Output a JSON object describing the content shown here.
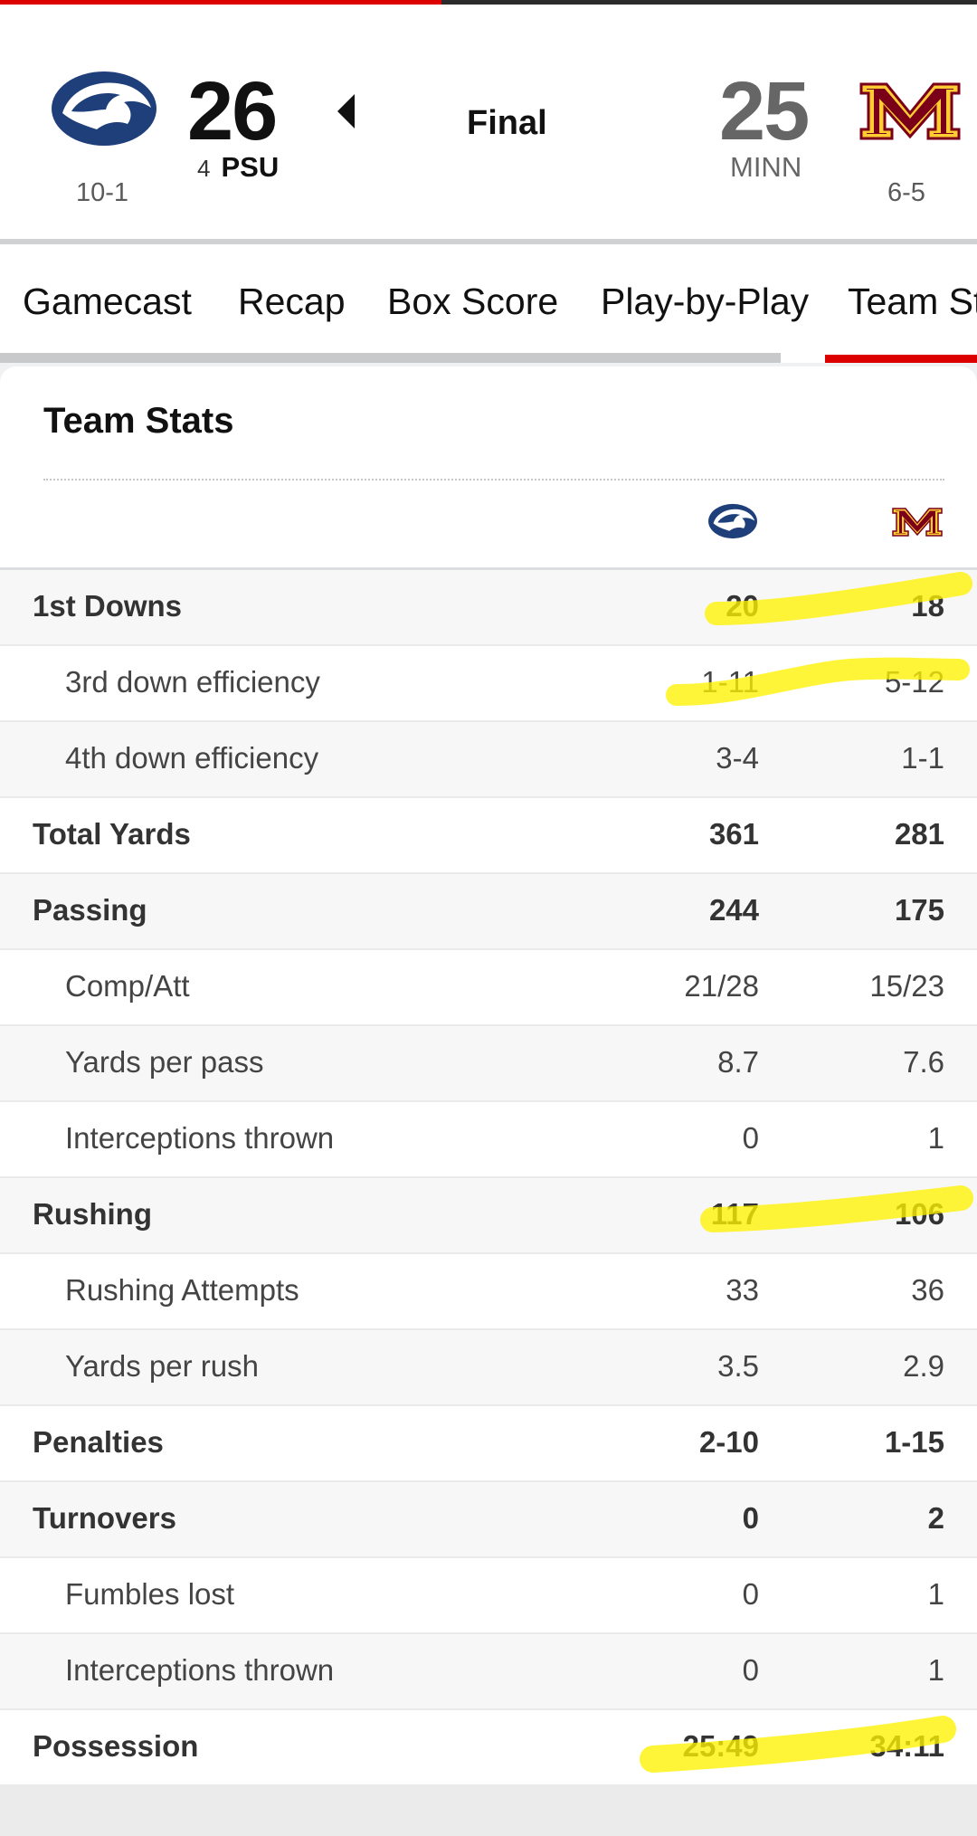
{
  "scoreboard": {
    "home": {
      "abbr": "PSU",
      "rank": "4",
      "score": "26",
      "record": "10-1",
      "logo": "penn-state-nittany-lion",
      "color": "#1e3f7a"
    },
    "away": {
      "abbr": "MINN",
      "score": "25",
      "record": "6-5",
      "logo": "minnesota-m",
      "color": "#7a0019",
      "accent": "#ffcc33"
    },
    "status": "Final"
  },
  "tabs": [
    {
      "label": "Gamecast"
    },
    {
      "label": "Recap"
    },
    {
      "label": "Box Score"
    },
    {
      "label": "Play-by-Play"
    },
    {
      "label": "Team Stats",
      "active": true
    }
  ],
  "card": {
    "title": "Team Stats"
  },
  "stats": [
    {
      "label": "1st Downs",
      "psu": "20",
      "minn": "18",
      "type": "main"
    },
    {
      "label": "3rd down efficiency",
      "psu": "1-11",
      "minn": "5-12",
      "type": "sub"
    },
    {
      "label": "4th down efficiency",
      "psu": "3-4",
      "minn": "1-1",
      "type": "sub"
    },
    {
      "label": "Total Yards",
      "psu": "361",
      "minn": "281",
      "type": "main"
    },
    {
      "label": "Passing",
      "psu": "244",
      "minn": "175",
      "type": "main"
    },
    {
      "label": "Comp/Att",
      "psu": "21/28",
      "minn": "15/23",
      "type": "sub"
    },
    {
      "label": "Yards per pass",
      "psu": "8.7",
      "minn": "7.6",
      "type": "sub"
    },
    {
      "label": "Interceptions thrown",
      "psu": "0",
      "minn": "1",
      "type": "sub"
    },
    {
      "label": "Rushing",
      "psu": "117",
      "minn": "106",
      "type": "main"
    },
    {
      "label": "Rushing Attempts",
      "psu": "33",
      "minn": "36",
      "type": "sub"
    },
    {
      "label": "Yards per rush",
      "psu": "3.5",
      "minn": "2.9",
      "type": "sub"
    },
    {
      "label": "Penalties",
      "psu": "2-10",
      "minn": "1-15",
      "type": "main"
    },
    {
      "label": "Turnovers",
      "psu": "0",
      "minn": "2",
      "type": "main"
    },
    {
      "label": "Fumbles lost",
      "psu": "0",
      "minn": "1",
      "type": "sub"
    },
    {
      "label": "Interceptions thrown",
      "psu": "0",
      "minn": "1",
      "type": "sub"
    },
    {
      "label": "Possession",
      "psu": "25:49",
      "minn": "34:11",
      "type": "main"
    }
  ],
  "highlight_color": "#fff200"
}
